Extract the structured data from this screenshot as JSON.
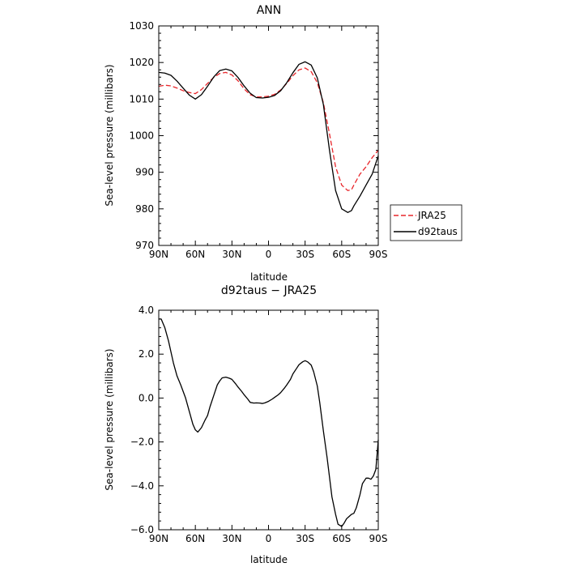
{
  "chart_data": [
    {
      "type": "line",
      "title": "ANN",
      "xlabel": "latitude",
      "ylabel": "Sea-level pressure (millibars)",
      "xlim": [
        90,
        -90
      ],
      "ylim": [
        970,
        1030
      ],
      "xticks": [
        90,
        60,
        30,
        0,
        -30,
        -60,
        -90
      ],
      "xtick_labels": [
        "90N",
        "60N",
        "30N",
        "0",
        "30S",
        "60S",
        "90S"
      ],
      "yticks": [
        970,
        980,
        990,
        1000,
        1010,
        1020,
        1030
      ],
      "ytick_labels": [
        "970",
        "980",
        "990",
        "1000",
        "1010",
        "1020",
        "1030"
      ],
      "grid": false,
      "legend_position": "right",
      "series": [
        {
          "name": "JRA25",
          "color": "#e8262b",
          "style": "dashed",
          "x": [
            90,
            85,
            80,
            75,
            70,
            65,
            60,
            55,
            50,
            45,
            40,
            35,
            30,
            25,
            20,
            15,
            10,
            5,
            0,
            -5,
            -10,
            -15,
            -20,
            -25,
            -30,
            -35,
            -40,
            -45,
            -50,
            -55,
            -60,
            -65,
            -68,
            -70,
            -75,
            -80,
            -85,
            -90
          ],
          "y": [
            1013.5,
            1013.8,
            1013.6,
            1013.0,
            1012.3,
            1011.8,
            1011.5,
            1012.6,
            1014.3,
            1015.9,
            1017.0,
            1017.3,
            1016.6,
            1015.0,
            1012.8,
            1011.2,
            1010.6,
            1010.6,
            1010.8,
            1011.3,
            1012.5,
            1014.3,
            1016.4,
            1018.0,
            1018.5,
            1017.5,
            1014.5,
            1009.0,
            1000.5,
            991.5,
            986.5,
            985.0,
            985.2,
            986.5,
            989.5,
            991.5,
            994.0,
            996.0
          ]
        },
        {
          "name": "d92taus",
          "color": "#000000",
          "style": "solid",
          "x": [
            90,
            85,
            80,
            75,
            70,
            65,
            60,
            55,
            50,
            45,
            40,
            35,
            30,
            25,
            20,
            15,
            10,
            5,
            0,
            -5,
            -10,
            -15,
            -20,
            -25,
            -30,
            -35,
            -40,
            -45,
            -50,
            -55,
            -60,
            -65,
            -68,
            -70,
            -75,
            -80,
            -85,
            -90
          ],
          "y": [
            1017.3,
            1017.1,
            1016.5,
            1014.9,
            1013.0,
            1011.1,
            1010.0,
            1011.2,
            1013.5,
            1016.0,
            1017.8,
            1018.2,
            1017.7,
            1015.9,
            1013.6,
            1011.6,
            1010.4,
            1010.3,
            1010.5,
            1011.0,
            1012.3,
            1014.5,
            1017.2,
            1019.5,
            1020.2,
            1019.3,
            1015.8,
            1008.5,
            996.0,
            985.0,
            980.0,
            979.0,
            979.5,
            980.8,
            983.5,
            986.5,
            989.5,
            994.5
          ]
        }
      ]
    },
    {
      "type": "line",
      "title": "d92taus − JRA25",
      "xlabel": "latitude",
      "ylabel": "Sea-level pressure (millibars)",
      "xlim": [
        90,
        -90
      ],
      "ylim": [
        -6,
        4
      ],
      "xticks": [
        90,
        60,
        30,
        0,
        -30,
        -60,
        -90
      ],
      "xtick_labels": [
        "90N",
        "60N",
        "30N",
        "0",
        "30S",
        "60S",
        "90S"
      ],
      "yticks": [
        -6,
        -4,
        -2,
        0,
        2,
        4
      ],
      "ytick_labels": [
        "−6.0",
        "−4.0",
        "−2.0",
        "0.0",
        "2.0",
        "4.0"
      ],
      "grid": false,
      "series": [
        {
          "color": "#000000",
          "style": "solid",
          "x": [
            90,
            88,
            85,
            82,
            80,
            78,
            75,
            72,
            70,
            68,
            65,
            62,
            60,
            58,
            55,
            52,
            50,
            48,
            45,
            42,
            40,
            38,
            35,
            32,
            30,
            27,
            25,
            22,
            20,
            17,
            15,
            12,
            10,
            7,
            5,
            3,
            0,
            -3,
            -5,
            -8,
            -10,
            -13,
            -15,
            -18,
            -20,
            -23,
            -25,
            -28,
            -30,
            -32,
            -35,
            -37,
            -40,
            -42,
            -45,
            -48,
            -50,
            -52,
            -55,
            -57,
            -60,
            -62,
            -64,
            -66,
            -68,
            -70,
            -72,
            -75,
            -77,
            -80,
            -82,
            -84,
            -86,
            -88,
            -89,
            -90
          ],
          "y": [
            3.6,
            3.6,
            3.2,
            2.6,
            2.1,
            1.6,
            1.0,
            0.6,
            0.3,
            0.0,
            -0.6,
            -1.2,
            -1.45,
            -1.55,
            -1.35,
            -1.0,
            -0.8,
            -0.4,
            0.1,
            0.6,
            0.78,
            0.92,
            0.95,
            0.9,
            0.85,
            0.65,
            0.5,
            0.3,
            0.15,
            -0.05,
            -0.2,
            -0.23,
            -0.22,
            -0.23,
            -0.25,
            -0.22,
            -0.15,
            -0.05,
            0.03,
            0.15,
            0.25,
            0.45,
            0.6,
            0.85,
            1.1,
            1.35,
            1.52,
            1.65,
            1.7,
            1.65,
            1.5,
            1.2,
            0.55,
            -0.2,
            -1.5,
            -2.7,
            -3.6,
            -4.5,
            -5.3,
            -5.75,
            -5.85,
            -5.7,
            -5.5,
            -5.4,
            -5.3,
            -5.25,
            -5.0,
            -4.4,
            -3.9,
            -3.65,
            -3.65,
            -3.7,
            -3.55,
            -3.25,
            -2.6,
            -1.9
          ]
        }
      ]
    }
  ]
}
